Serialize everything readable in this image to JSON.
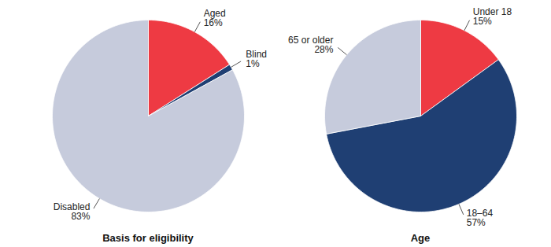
{
  "chart_data": [
    {
      "type": "pie",
      "title": "Basis for eligibility",
      "categories": [
        "Aged",
        "Blind",
        "Disabled"
      ],
      "values": [
        16,
        1,
        83
      ],
      "value_labels": [
        "16%",
        "1%",
        "83%"
      ],
      "colors": [
        "#ee3a43",
        "#1f3f73",
        "#c6cbdc"
      ],
      "data_labels": true
    },
    {
      "type": "pie",
      "title": "Age",
      "categories": [
        "Under 18",
        "18–64",
        "65 or older"
      ],
      "values": [
        15,
        57,
        28
      ],
      "value_labels": [
        "15%",
        "57%",
        "28%"
      ],
      "colors": [
        "#ee3a43",
        "#1f3f73",
        "#c6cbdc"
      ],
      "data_labels": true
    }
  ]
}
